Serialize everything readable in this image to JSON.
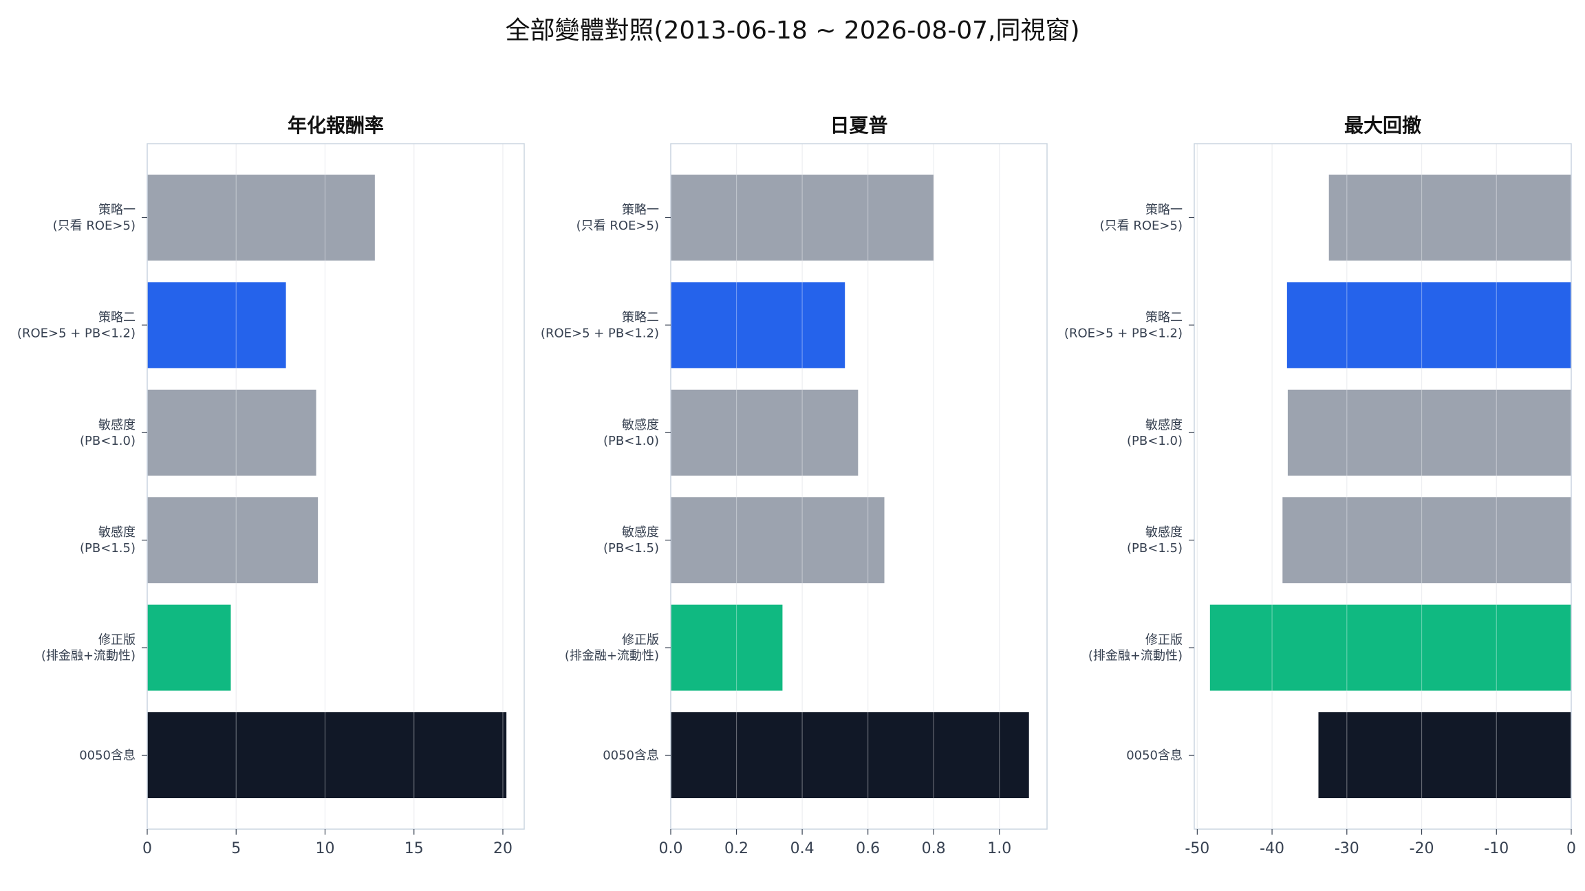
{
  "page_title": "全部變體對照(2013-06-18 ~ 2026-08-07,同視窗)",
  "colors": {
    "gray": "#9ca3af",
    "blue": "#2563eb",
    "green": "#10b981",
    "dark": "#111827"
  },
  "chart_data": [
    {
      "type": "bar",
      "orientation": "horizontal",
      "title": "年化報酬率",
      "categories": [
        "策略一\n(只看 ROE>5)",
        "策略二\n(ROE>5 + PB<1.2)",
        "敏感度\n(PB<1.0)",
        "敏感度\n(PB<1.5)",
        "修正版\n(排金融+流動性)",
        "0050含息"
      ],
      "values": [
        12.8,
        7.8,
        9.5,
        9.6,
        4.7,
        20.2
      ],
      "bar_colors": [
        "gray",
        "blue",
        "gray",
        "gray",
        "green",
        "dark"
      ],
      "xlim": [
        0,
        21.2
      ],
      "xticks": [
        0,
        5,
        10,
        15,
        20
      ],
      "xtick_labels": [
        "0",
        "5",
        "10",
        "15",
        "20"
      ],
      "grid": true
    },
    {
      "type": "bar",
      "orientation": "horizontal",
      "title": "日夏普",
      "categories": [
        "策略一\n(只看 ROE>5)",
        "策略二\n(ROE>5 + PB<1.2)",
        "敏感度\n(PB<1.0)",
        "敏感度\n(PB<1.5)",
        "修正版\n(排金融+流動性)",
        "0050含息"
      ],
      "values": [
        0.8,
        0.53,
        0.57,
        0.65,
        0.34,
        1.09
      ],
      "bar_colors": [
        "gray",
        "blue",
        "gray",
        "gray",
        "green",
        "dark"
      ],
      "xlim": [
        0,
        1.145
      ],
      "xticks": [
        0,
        0.2,
        0.4,
        0.6,
        0.8,
        1.0
      ],
      "xtick_labels": [
        "0.0",
        "0.2",
        "0.4",
        "0.6",
        "0.8",
        "1.0"
      ],
      "grid": true
    },
    {
      "type": "bar",
      "orientation": "horizontal",
      "title": "最大回撤",
      "categories": [
        "策略一\n(只看 ROE>5)",
        "策略二\n(ROE>5 + PB<1.2)",
        "敏感度\n(PB<1.0)",
        "敏感度\n(PB<1.5)",
        "修正版\n(排金融+流動性)",
        "0050含息"
      ],
      "values": [
        -32.4,
        -38.0,
        -37.9,
        -38.6,
        -48.3,
        -33.8
      ],
      "bar_colors": [
        "gray",
        "blue",
        "gray",
        "gray",
        "green",
        "dark"
      ],
      "xlim": [
        -50.4,
        0
      ],
      "xticks": [
        -50,
        -40,
        -30,
        -20,
        -10,
        0
      ],
      "xtick_labels": [
        "-50",
        "-40",
        "-30",
        "-20",
        "-10",
        "0"
      ],
      "grid": true
    }
  ]
}
